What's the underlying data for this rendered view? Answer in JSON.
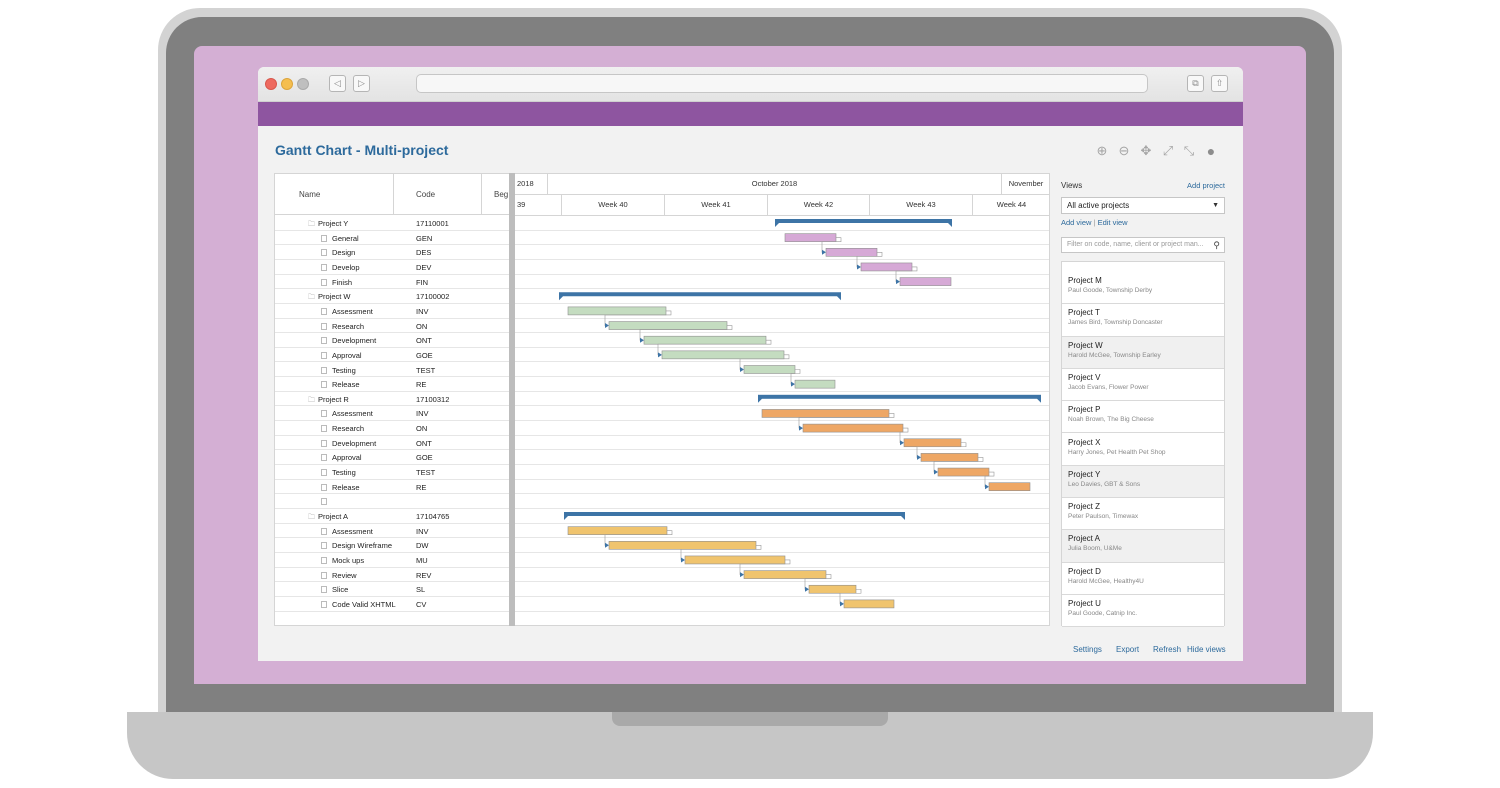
{
  "page": {
    "title": "Gantt Chart - Multi-project"
  },
  "toolbar": {
    "icons": [
      "zoom-in-icon",
      "zoom-out-icon",
      "move-icon",
      "expand-icon",
      "collapse-icon",
      "add-circle-icon"
    ]
  },
  "grid": {
    "columns": {
      "name": "Name",
      "code": "Code",
      "begin": "Beg"
    },
    "rows": [
      {
        "type": "project",
        "name": "Project Y",
        "code": "17110001"
      },
      {
        "type": "task",
        "name": "General",
        "code": "GEN"
      },
      {
        "type": "task",
        "name": "Design",
        "code": "DES"
      },
      {
        "type": "task",
        "name": "Develop",
        "code": "DEV"
      },
      {
        "type": "task",
        "name": "Finish",
        "code": "FIN"
      },
      {
        "type": "project",
        "name": "Project W",
        "code": "17100002"
      },
      {
        "type": "task",
        "name": "Assessment",
        "code": "INV"
      },
      {
        "type": "task",
        "name": "Research",
        "code": "ON"
      },
      {
        "type": "task",
        "name": "Development",
        "code": "ONT"
      },
      {
        "type": "task",
        "name": "Approval",
        "code": "GOE"
      },
      {
        "type": "task",
        "name": "Testing",
        "code": "TEST"
      },
      {
        "type": "task",
        "name": "Release",
        "code": "RE"
      },
      {
        "type": "project",
        "name": "Project R",
        "code": "17100312"
      },
      {
        "type": "task",
        "name": "Assessment",
        "code": "INV"
      },
      {
        "type": "task",
        "name": "Research",
        "code": "ON"
      },
      {
        "type": "task",
        "name": "Development",
        "code": "ONT"
      },
      {
        "type": "task",
        "name": "Approval",
        "code": "GOE"
      },
      {
        "type": "task",
        "name": "Testing",
        "code": "TEST"
      },
      {
        "type": "task",
        "name": "Release",
        "code": "RE"
      },
      {
        "type": "task",
        "name": "",
        "code": ""
      },
      {
        "type": "project",
        "name": "Project A",
        "code": "17104765"
      },
      {
        "type": "task",
        "name": "Assessment",
        "code": "INV"
      },
      {
        "type": "task",
        "name": "Design Wireframe",
        "code": "DW"
      },
      {
        "type": "task",
        "name": "Mock ups",
        "code": "MU"
      },
      {
        "type": "task",
        "name": "Review",
        "code": "REV"
      },
      {
        "type": "task",
        "name": "Slice",
        "code": "SL"
      },
      {
        "type": "task",
        "name": "Code Valid XHTML",
        "code": "CV"
      }
    ]
  },
  "timeline": {
    "months": [
      "2018",
      "October 2018",
      "November"
    ],
    "weeks": [
      "39",
      "Week 40",
      "Week 41",
      "Week 42",
      "Week 43",
      "Week 44"
    ]
  },
  "colors": {
    "summary": "#3d74a6",
    "project_y": "#d6a9d6",
    "project_w": "#c4dcc0",
    "project_r": "#eea765",
    "project_a": "#f0c46e",
    "link": "#3d74a6",
    "accent_purple": "#8e55a0"
  },
  "views": {
    "label": "Views",
    "add_project": "Add project",
    "selected_view": "All active projects",
    "add_view": "Add view",
    "edit_view": "Edit view",
    "filter_placeholder": "Filter on code, name, client or project man...",
    "projects": [
      {
        "name": "Project M",
        "client": "Paul Goode, Township Derby",
        "highlighted": false
      },
      {
        "name": "Project T",
        "client": "James Bird, Township Doncaster",
        "highlighted": false
      },
      {
        "name": "Project W",
        "client": "Harold McGee, Township Earley",
        "highlighted": true
      },
      {
        "name": "Project V",
        "client": "Jacob Evans, Flower Power",
        "highlighted": false
      },
      {
        "name": "Project P",
        "client": "Noah Brown, The Big Cheese",
        "highlighted": false
      },
      {
        "name": "Project X",
        "client": "Harry Jones, Pet Health Pet Shop",
        "highlighted": false
      },
      {
        "name": "Project Y",
        "client": "Leo Davies, GBT & Sons",
        "highlighted": true
      },
      {
        "name": "Project Z",
        "client": "Peter Paulson, Timewax",
        "highlighted": false
      },
      {
        "name": "Project A",
        "client": "Julia Boom, U&Me",
        "highlighted": true
      },
      {
        "name": "Project D",
        "client": "Harold McGee, Healthy4U",
        "highlighted": false
      },
      {
        "name": "Project U",
        "client": "Paul Goode, Catnip Inc.",
        "highlighted": false
      }
    ]
  },
  "footer": {
    "settings": "Settings",
    "export": "Export",
    "refresh": "Refresh",
    "hide_views": "Hide views"
  }
}
